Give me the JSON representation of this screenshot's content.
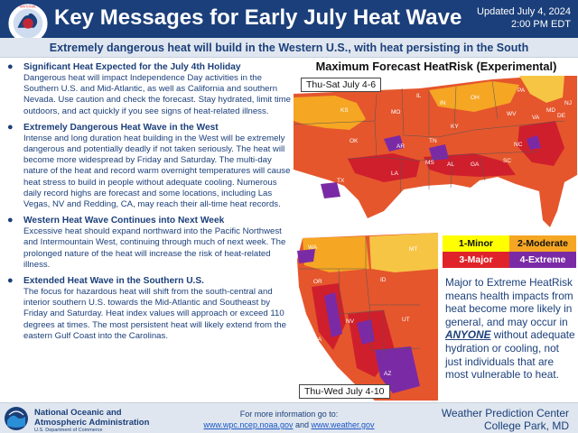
{
  "header": {
    "title": "Key Messages for Early July Heat Wave",
    "updated_line1": "Updated July 4, 2024",
    "updated_line2": "2:00 PM EDT",
    "logo_text": "NATIONAL WEATHER SERVICE"
  },
  "subtitle": "Extremely dangerous heat will build in the Western U.S., with heat persisting in the South",
  "messages": [
    {
      "title": "Significant Heat Expected for the July 4th Holiday",
      "body": "Dangerous heat will impact Independence Day activities in the Southern U.S. and Mid-Atlantic, as well as California and southern Nevada. Use caution and check the forecast. Stay hydrated, limit time outdoors, and act quickly if you see signs of heat-related illness."
    },
    {
      "title": "Extremely Dangerous Heat Wave in the West",
      "body": "Intense and long duration heat building in the West will be extremely dangerous and potentially deadly if not taken seriously. The heat will become more widespread by Friday and Saturday. The multi-day nature of the heat and record warm overnight temperatures will cause heat stress to build in people without adequate cooling. Numerous daily record highs are forecast and some locations, including Las Vegas, NV and Redding, CA, may reach their all-time heat records."
    },
    {
      "title": "Western Heat Wave Continues into Next Week",
      "body": "Excessive heat should expand northward into the Pacific Northwest and Intermountain West, continuing through much of next week. The prolonged nature of the heat will increase the risk of heat-related illness."
    },
    {
      "title": "Extended Heat Wave in the Southern U.S.",
      "body": "The focus for hazardous heat will shift from the south-central and interior southern U.S. towards the Mid-Atlantic and Southeast by Friday and Saturday. Heat index values will approach or exceed 110 degrees at times. The most persistent heat will likely extend from the eastern Gulf Coast into the Carolinas."
    }
  ],
  "map": {
    "heading": "Maximum Forecast HeatRisk (Experimental)",
    "east_period": "Thu-Sat July 4-6",
    "west_period": "Thu-Wed July 4-10",
    "east_states": [
      "KS",
      "MO",
      "IL",
      "IN",
      "OH",
      "PA",
      "KY",
      "WV",
      "VA",
      "MD",
      "DE",
      "NJ",
      "TN",
      "NC",
      "SC",
      "OK",
      "AR",
      "MS",
      "AL",
      "GA",
      "TX",
      "LA",
      "FL"
    ],
    "west_states": [
      "WA",
      "MT",
      "OR",
      "ID",
      "NV",
      "UT",
      "CA",
      "AZ"
    ]
  },
  "legend": [
    {
      "label": "1-Minor",
      "color": "#ffff00"
    },
    {
      "label": "2-Moderate",
      "color": "#f5a623"
    },
    {
      "label": "3-Major",
      "color": "#e0232a"
    },
    {
      "label": "4-Extreme",
      "color": "#7b2aa6"
    }
  ],
  "note": {
    "before": "Major to Extreme HeatRisk means health impacts from heat become more likely in general, and may occur in ",
    "emphasis": "ANYONE",
    "after": " without adequate hydration or cooling, not just individuals that are most vulnerable to heat."
  },
  "footer": {
    "agency_line1": "National Oceanic and",
    "agency_line2": "Atmospheric Administration",
    "agency_dept": "U.S. Department of Commerce",
    "more_info": "For more information go to:",
    "link1": "www.wpc.ncep.noaa.gov",
    "and": " and ",
    "link2": "www.weather.gov",
    "wpc_line1": "Weather Prediction Center",
    "wpc_line2": "College Park, MD",
    "noaa_logo_text": "NOAA"
  }
}
